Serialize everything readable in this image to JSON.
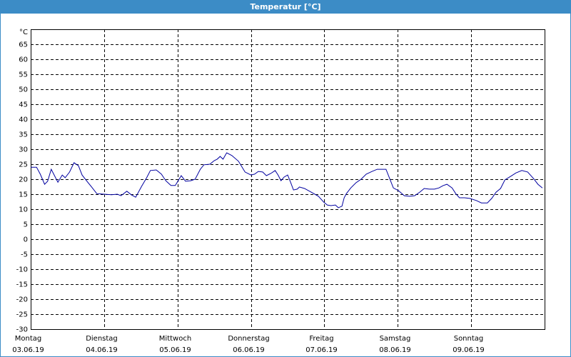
{
  "window": {
    "title": "Temperatur [°C]"
  },
  "chart_data": {
    "type": "line",
    "y_label": "°C",
    "color": "#0000a0",
    "grid": true,
    "xlim": [
      0,
      7
    ],
    "ylim": [
      -30,
      70
    ],
    "yticks": [
      -30,
      -25,
      -20,
      -15,
      -10,
      -5,
      0,
      5,
      10,
      15,
      20,
      25,
      30,
      35,
      40,
      45,
      50,
      55,
      60,
      65
    ],
    "xticks": [
      {
        "value": 0,
        "label": "Montag",
        "date": "03.06.19"
      },
      {
        "value": 1,
        "label": "Dienstag",
        "date": "04.06.19"
      },
      {
        "value": 2,
        "label": "Mittwoch",
        "date": "05.06.19"
      },
      {
        "value": 3,
        "label": "Donnerstag",
        "date": "06.06.19"
      },
      {
        "value": 4,
        "label": "Freitag",
        "date": "07.06.19"
      },
      {
        "value": 5,
        "label": "Samstag",
        "date": "08.06.19"
      },
      {
        "value": 6,
        "label": "Sonntag",
        "date": "09.06.19"
      }
    ],
    "x": [
      0,
      0.08,
      0.13,
      0.19,
      0.23,
      0.28,
      0.32,
      0.37,
      0.43,
      0.47,
      0.53,
      0.59,
      0.65,
      0.7,
      0.76,
      0.83,
      0.9,
      1.0,
      1.1,
      1.18,
      1.23,
      1.31,
      1.37,
      1.43,
      1.51,
      1.58,
      1.63,
      1.71,
      1.78,
      1.84,
      1.91,
      1.97,
      2.05,
      2.11,
      2.18,
      2.24,
      2.31,
      2.36,
      2.44,
      2.5,
      2.54,
      2.58,
      2.62,
      2.67,
      2.74,
      2.83,
      2.92,
      3.0,
      3.05,
      3.1,
      3.16,
      3.21,
      3.27,
      3.33,
      3.37,
      3.41,
      3.45,
      3.5,
      3.54,
      3.58,
      3.63,
      3.66,
      3.73,
      3.82,
      3.92,
      3.99,
      4.04,
      4.09,
      4.15,
      4.19,
      4.24,
      4.27,
      4.3,
      4.36,
      4.43,
      4.5,
      4.57,
      4.65,
      4.72,
      4.8,
      4.84,
      4.89,
      4.94,
      5.01,
      5.09,
      5.16,
      5.23,
      5.3,
      5.36,
      5.43,
      5.5,
      5.56,
      5.62,
      5.67,
      5.74,
      5.79,
      5.84,
      5.91,
      5.98,
      6.07,
      6.14,
      6.22,
      6.28,
      6.34,
      6.4,
      6.46,
      6.54,
      6.61,
      6.69,
      6.77,
      6.85,
      6.91,
      6.97
    ],
    "values": [
      24,
      24,
      21.7,
      18.3,
      19.3,
      23.3,
      21.4,
      19,
      21.4,
      20.5,
      22.4,
      25.5,
      24.5,
      21.4,
      19.5,
      17.4,
      15.2,
      15,
      14.8,
      15,
      14.5,
      16,
      14.8,
      14,
      17.6,
      20.5,
      22.9,
      23.1,
      21.7,
      19.5,
      17.9,
      17.9,
      21.2,
      19.3,
      19.5,
      20,
      23.3,
      24.8,
      25,
      26.2,
      26.7,
      27.6,
      26.7,
      28.8,
      27.9,
      26,
      22.4,
      21.4,
      21.7,
      22.6,
      22.4,
      21.2,
      21.9,
      22.9,
      21.4,
      19.5,
      20.7,
      21.4,
      19,
      16.4,
      16.7,
      17.4,
      16.9,
      15.7,
      14.3,
      12.4,
      11.4,
      11.2,
      11.4,
      10.5,
      11,
      13.8,
      15.2,
      17.1,
      18.8,
      20,
      21.7,
      22.6,
      23.3,
      23.3,
      23.3,
      20.2,
      17.1,
      16.2,
      14.5,
      14.3,
      14.5,
      15.7,
      16.9,
      16.7,
      16.7,
      17.1,
      17.9,
      18.3,
      17.1,
      15.2,
      13.8,
      13.8,
      13.6,
      12.9,
      12.1,
      12.1,
      13.6,
      15.7,
      16.9,
      19.8,
      21,
      22.1,
      22.9,
      22.4,
      20.2,
      18.3,
      17.1
    ]
  }
}
